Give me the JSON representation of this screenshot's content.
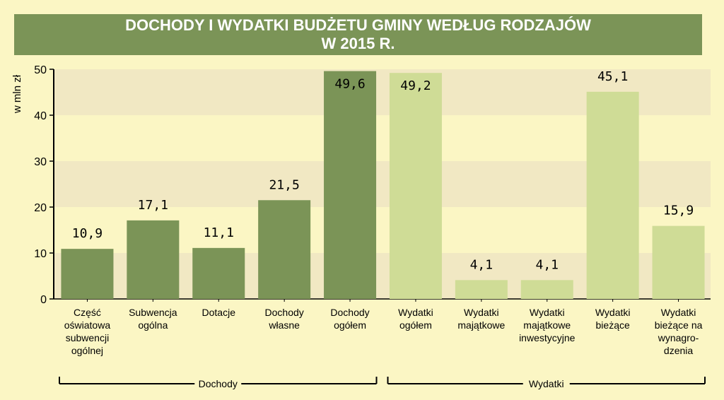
{
  "title": {
    "line1": "DOCHODY I WYDATKI BUDŻETU GMINY WEDŁUG RODZAJÓW",
    "line2": "W 2015 R."
  },
  "chart_data": {
    "type": "bar",
    "title": "DOCHODY I WYDATKI BUDŻETU GMINY WEDŁUG RODZAJÓW W 2015 R.",
    "ylabel": "w mln zł",
    "xlabel": "",
    "ylim": [
      0,
      50
    ],
    "yticks": [
      0,
      10,
      20,
      30,
      40,
      50
    ],
    "grid": "alternating horizontal bands",
    "categories": [
      [
        "Część",
        "oświatowa",
        "subwencji",
        "ogólnej"
      ],
      [
        "Subwencja",
        "ogólna"
      ],
      [
        "Dotacje"
      ],
      [
        "Dochody",
        "własne"
      ],
      [
        "Dochody",
        "ogółem"
      ],
      [
        "Wydatki",
        "ogółem"
      ],
      [
        "Wydatki",
        "majątkowe"
      ],
      [
        "Wydatki",
        "majątkowe",
        "inwestycyjne"
      ],
      [
        "Wydatki",
        "bieżące"
      ],
      [
        "Wydatki",
        "bieżące na",
        "wynagro-",
        "dzenia"
      ]
    ],
    "values": [
      10.9,
      17.1,
      11.1,
      21.5,
      49.6,
      49.2,
      4.1,
      4.1,
      45.1,
      15.9
    ],
    "value_labels": [
      "10,9",
      "17,1",
      "11,1",
      "21,5",
      "49,6",
      "49,2",
      "4,1",
      "4,1",
      "45,1",
      "15,9"
    ],
    "groups": [
      {
        "name": "Dochody",
        "indices": [
          0,
          1,
          2,
          3,
          4
        ],
        "color": "#7b9457"
      },
      {
        "name": "Wydatki",
        "indices": [
          5,
          6,
          7,
          8,
          9
        ],
        "color": "#cfdc96"
      }
    ]
  },
  "colors": {
    "background": "#fbf6c4",
    "band": "#f1e8c3",
    "title_bar": "#7b9457",
    "dochody": "#7b9457",
    "wydatki": "#cfdc96"
  }
}
